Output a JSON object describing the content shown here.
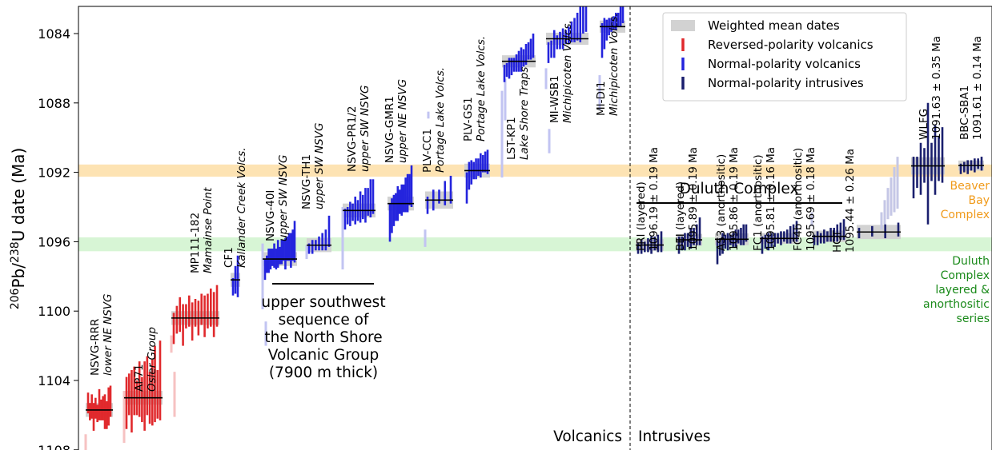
{
  "chart_data": {
    "type": "scatter",
    "title": "",
    "ylabel_main": "206",
    "ylabel_mid": "Pb/",
    "ylabel_sup": "238",
    "ylabel_tail": "U date (Ma)",
    "y_axis_reversed": true,
    "ylim": [
      1082.5,
      1108
    ],
    "yticks": [
      1084,
      1088,
      1092,
      1096,
      1100,
      1104,
      1108
    ],
    "ytick_labels": [
      "1084",
      "1088",
      "1092",
      "1096",
      "1100",
      "1104",
      "1108"
    ],
    "bands": [
      {
        "name": "beaver-bay",
        "y_min": 1091.55,
        "y_max": 1092.25,
        "color": "#fde3b3"
      },
      {
        "name": "duluth-layered",
        "y_min": 1095.75,
        "y_max": 1096.55,
        "color": "#d7f5d5"
      }
    ],
    "colors": {
      "reversed": "#e0292c",
      "reversed_light": "#f6c2c2",
      "normal": "#2424dd",
      "normal_light": "#c2c4f2",
      "intrusive": "#1a1f6e",
      "intrusive_light": "#c5c7e6",
      "weighted_box": "#d2d2d2",
      "mean_line": "#000000"
    },
    "legend": {
      "placement": "top-right",
      "items": [
        {
          "label": "Weighted mean dates",
          "kind": "box"
        },
        {
          "label": "Reversed-polarity volcanics",
          "kind": "reversed"
        },
        {
          "label": "Normal-polarity volcanics",
          "kind": "normal"
        },
        {
          "label": "Normal-polarity intrusives",
          "kind": "intrusive"
        }
      ]
    },
    "region_labels": {
      "left": "Volcanics",
      "right": "Intrusives",
      "divider_x": 787
    },
    "series": [
      {
        "name": "NSVG-RRR",
        "sub": "lower NE NSVG",
        "polarity": "reversed",
        "mean": 1105.7,
        "err": 0.25,
        "ages": [
          1105.3,
          1105.8,
          1105.5,
          1106.1,
          1105.6,
          1105.9,
          1105.4,
          1105.7,
          1105.6,
          1105.8,
          1106.0,
          1105.5,
          1105.2
        ],
        "errs": [
          0.6,
          0.5,
          0.7,
          0.8,
          0.6,
          0.5,
          0.9,
          0.6,
          0.7,
          1.0,
          0.8,
          1.1,
          0.9
        ],
        "excluded": [
          {
            "y": 1107.8,
            "e": 0.7
          }
        ]
      },
      {
        "name": "AP71",
        "sub": "Osler Group",
        "polarity": "reversed",
        "mean": 1105.0,
        "err": 0.25,
        "ages": [
          1105.3,
          1104.8,
          1105.2,
          1104.6,
          1105.0,
          1104.5,
          1105.1,
          1104.9,
          1104.3,
          1105.0,
          1104.7,
          1104.2,
          1104.8,
          1104.0
        ],
        "errs": [
          1.5,
          1.2,
          1.8,
          1.4,
          1.0,
          1.6,
          1.3,
          2.0,
          1.7,
          1.5,
          1.9,
          2.2,
          1.4,
          2.3
        ],
        "excluded": [
          {
            "y": 1106.1,
            "e": 1.5
          }
        ]
      },
      {
        "name": "MP111-182",
        "sub": "Mamainse Point",
        "polarity": "reversed",
        "mean": 1100.4,
        "err": 0.25,
        "ages": [
          1101.0,
          1100.5,
          1100.2,
          1100.8,
          1100.3,
          1100.0,
          1100.6,
          1100.1,
          1100.4,
          1099.9,
          1100.3,
          1100.0,
          1099.8,
          1100.2,
          1099.7
        ],
        "errs": [
          0.9,
          0.8,
          1.0,
          1.2,
          0.7,
          0.9,
          1.1,
          0.8,
          1.0,
          0.9,
          1.2,
          1.0,
          1.1,
          1.3,
          1.2
        ],
        "excluded": [
          {
            "y": 1101.9,
            "e": 0.5
          },
          {
            "y": 1104.8,
            "e": 1.3
          }
        ]
      },
      {
        "name": "CF1",
        "sub": "Kallander Creek Volcs.",
        "polarity": "normal",
        "mean": 1098.2,
        "err": 0.25,
        "ages": [
          1098.6,
          1098.2,
          1098.0
        ],
        "errs": [
          0.5,
          0.8,
          1.2
        ],
        "excluded": []
      },
      {
        "name": "NSVG-40I",
        "sub": "upper SW NSVG",
        "polarity": "normal",
        "mean": 1097.0,
        "err": 0.25,
        "ages": [
          1097.6,
          1097.3,
          1097.1,
          1097.0,
          1096.9,
          1096.8,
          1097.0,
          1096.7,
          1096.8,
          1096.6,
          1096.5,
          1096.7,
          1096.4,
          1096.3,
          1096.5,
          1096.2,
          1096.0
        ],
        "errs": [
          0.6,
          0.5,
          0.7,
          0.6,
          0.5,
          0.7,
          0.6,
          0.8,
          0.5,
          0.7,
          0.6,
          0.9,
          0.7,
          0.8,
          1.0,
          0.9,
          1.2
        ],
        "excluded": [
          {
            "y": 1098.0,
            "e": 1.9
          },
          {
            "y": 1101.3,
            "e": 0.7
          }
        ]
      },
      {
        "name": "NSVG-TH1",
        "sub": "upper SW NSVG",
        "polarity": "normal",
        "mean": 1096.2,
        "err": 0.25,
        "ages": [
          1096.4,
          1096.3,
          1096.2,
          1096.1,
          1096.0,
          1095.9,
          1095.4
        ],
        "errs": [
          0.3,
          0.4,
          0.3,
          0.4,
          0.5,
          0.6,
          0.9
        ],
        "excluded": [
          {
            "y": 1096.6,
            "e": 0.4
          }
        ]
      },
      {
        "name": "NSVG-PR1/2",
        "sub": "upper SW NSVG",
        "polarity": "normal",
        "mean": 1094.2,
        "err": 0.25,
        "ages": [
          1094.7,
          1094.5,
          1094.4,
          1094.3,
          1094.2,
          1094.2,
          1094.0,
          1094.0,
          1093.9,
          1093.7,
          1093.5,
          1093.4
        ],
        "errs": [
          0.6,
          0.5,
          0.7,
          0.5,
          0.8,
          0.6,
          0.9,
          0.7,
          1.0,
          0.8,
          1.1,
          1.0
        ],
        "excluded": [
          {
            "y": 1095.8,
            "e": 1.8
          }
        ]
      },
      {
        "name": "NSVG-GMR1",
        "sub": "upper NE NSVG",
        "polarity": "normal",
        "mean": 1093.8,
        "err": 0.25,
        "ages": [
          1094.9,
          1094.5,
          1094.2,
          1094.0,
          1093.8,
          1093.7,
          1093.6,
          1093.5,
          1093.3,
          1093.2,
          1093.0,
          1092.8
        ],
        "errs": [
          1.1,
          1.0,
          0.9,
          0.8,
          1.0,
          0.7,
          0.9,
          0.8,
          1.0,
          1.1,
          0.9,
          1.2
        ],
        "excluded": []
      },
      {
        "name": "PLV-CC1",
        "sub": "Portage Lake Volcs.",
        "polarity": "normal",
        "mean": 1093.6,
        "err": 0.35,
        "ages": [
          1093.9,
          1093.6,
          1093.4,
          1093.2,
          1093.0
        ],
        "errs": [
          0.5,
          0.6,
          0.4,
          0.7,
          0.8
        ],
        "excluded": [
          {
            "y": 1095.8,
            "e": 0.5
          },
          {
            "y": 1088.7,
            "e": 0.2
          }
        ]
      },
      {
        "name": "PLV-GS1",
        "sub": "Portage Lake Volcs.",
        "polarity": "normal",
        "mean": 1091.9,
        "err": 0.25,
        "ages": [
          1092.9,
          1092.2,
          1092.0,
          1091.9,
          1091.8,
          1091.7,
          1091.6,
          1091.5,
          1091.4,
          1091.4
        ],
        "errs": [
          0.9,
          0.8,
          0.7,
          0.5,
          0.6,
          0.5,
          0.7,
          0.5,
          0.6,
          0.7
        ],
        "excluded": []
      },
      {
        "name": "LST-KP1",
        "sub": "Lake Shore Traps",
        "polarity": "normal",
        "mean": 1085.6,
        "err": 0.2,
        "ages": [
          1086.3,
          1086.1,
          1086.0,
          1085.9,
          1085.8,
          1085.7,
          1085.6,
          1085.5,
          1085.4,
          1085.2,
          1085.0,
          1084.9,
          1084.7
        ],
        "errs": [
          0.5,
          0.4,
          0.6,
          0.5,
          0.4,
          0.5,
          0.6,
          0.7,
          0.5,
          0.6,
          0.5,
          0.6,
          0.7
        ],
        "excluded": [
          {
            "y": 1089.8,
            "e": 2.5
          },
          {
            "y": 1087.8,
            "e": 1.2
          }
        ]
      },
      {
        "name": "MI-WSB1",
        "sub": "Michipicoten Volcs.",
        "polarity": "normal",
        "mean": 1084.3,
        "err": 0.2,
        "ages": [
          1085.1,
          1084.9,
          1084.6,
          1084.5,
          1084.4,
          1084.3,
          1084.2,
          1084.1,
          1083.9,
          1083.8,
          1083.6,
          1083.3,
          1083.0,
          1082.8
        ],
        "errs": [
          0.6,
          0.5,
          0.8,
          0.4,
          0.5,
          0.6,
          0.4,
          0.5,
          0.6,
          0.7,
          0.8,
          1.2,
          1.0,
          1.1
        ],
        "excluded": [
          {
            "y": 1086.6,
            "e": 0.6
          },
          {
            "y": 1090.2,
            "e": 0.7
          }
        ]
      },
      {
        "name": "MI-DI1",
        "sub": "Michipicoten Volcs.",
        "polarity": "normal",
        "mean": 1083.6,
        "err": 0.2,
        "ages": [
          1084.4,
          1084.0,
          1083.8,
          1083.6,
          1083.5,
          1083.4,
          1083.3,
          1083.2,
          1083.0,
          1082.9
        ],
        "errs": [
          1.0,
          0.9,
          0.6,
          0.5,
          0.4,
          0.4,
          0.5,
          0.4,
          0.6,
          0.5
        ],
        "excluded": [
          {
            "y": 1087.4,
            "e": 1.0
          }
        ]
      },
      {
        "name": "PRI (layered)",
        "sub": "1096.19 ± 0.19 Ma",
        "polarity": "intrusive",
        "mean": 1096.19,
        "err": 0.19,
        "ages": [
          1096.4,
          1096.3,
          1096.3,
          1096.2,
          1096.2,
          1096.1,
          1096.1,
          1096.0
        ],
        "errs": [
          0.3,
          0.4,
          0.3,
          0.4,
          0.5,
          0.4,
          0.5,
          0.6
        ],
        "excluded": []
      },
      {
        "name": "BEI (layered)",
        "sub": "1095.89 ± 0.19 Ma",
        "polarity": "intrusive",
        "mean": 1095.89,
        "err": 0.19,
        "ages": [
          1096.2,
          1096.1,
          1096.0,
          1095.9,
          1095.8,
          1095.7,
          1095.6,
          1095.4
        ],
        "errs": [
          0.5,
          0.4,
          0.5,
          0.4,
          0.6,
          0.5,
          0.6,
          0.8
        ],
        "excluded": []
      },
      {
        "name": "AS3 (anorthositic)",
        "sub": "1095.86 ± 0.19 Ma",
        "polarity": "intrusive",
        "mean": 1095.86,
        "err": 0.19,
        "ages": [
          1096.6,
          1096.3,
          1096.1,
          1096.0,
          1096.0,
          1095.9,
          1095.9,
          1095.8,
          1095.7,
          1095.7,
          1095.6,
          1095.5
        ],
        "errs": [
          0.7,
          0.5,
          0.6,
          0.4,
          0.5,
          0.3,
          0.4,
          0.5,
          0.4,
          0.5,
          0.6,
          0.5
        ],
        "excluded": []
      },
      {
        "name": "FC1 (anorthositic)",
        "sub": "1095.81 ± 0.16 Ma",
        "polarity": "intrusive",
        "mean": 1095.81,
        "err": 0.16,
        "ages": [
          1096.2,
          1096.0,
          1096.0,
          1095.9,
          1095.9,
          1095.8,
          1095.8,
          1095.7,
          1095.7,
          1095.6,
          1095.5,
          1095.4
        ],
        "errs": [
          0.5,
          0.4,
          0.5,
          0.4,
          0.4,
          0.3,
          0.4,
          0.3,
          0.4,
          0.5,
          0.5,
          0.6
        ],
        "excluded": []
      },
      {
        "name": "FC4b (anorthositic)",
        "sub": "1095.69 ± 0.18 Ma",
        "polarity": "intrusive",
        "mean": 1095.69,
        "err": 0.18,
        "ages": [
          1095.9,
          1095.8,
          1095.8,
          1095.7,
          1095.7,
          1095.6,
          1095.6,
          1095.5,
          1095.4,
          1095.3
        ],
        "errs": [
          0.3,
          0.4,
          0.3,
          0.4,
          0.3,
          0.4,
          0.4,
          0.5,
          0.5,
          0.6
        ],
        "excluded": [
          {
            "y": 1094.7,
            "e": 0.4
          }
        ]
      },
      {
        "name": "HCT",
        "sub": "1095.44 ± 0.26 Ma",
        "polarity": "intrusive",
        "mean": 1095.44,
        "err": 0.26,
        "ages": [
          1095.5,
          1095.4,
          1095.4,
          1095.3
        ],
        "errs": [
          0.3,
          0.3,
          0.4,
          0.4
        ],
        "excluded": [
          {
            "y": 1094.8,
            "e": 0.5
          },
          {
            "y": 1094.3,
            "e": 0.7
          },
          {
            "y": 1093.8,
            "e": 0.9
          },
          {
            "y": 1093.4,
            "e": 1.1
          },
          {
            "y": 1093.0,
            "e": 1.3
          },
          {
            "y": 1092.6,
            "e": 1.5
          }
        ]
      },
      {
        "name": "WLFG",
        "sub": "1091.63 ± 0.35 Ma",
        "polarity": "intrusive",
        "mean": 1091.63,
        "err": 0.35,
        "ages": [
          1092.3,
          1092.0,
          1091.8,
          1091.6,
          1091.5,
          1091.4,
          1091.3,
          1091.2,
          1091.0
        ],
        "errs": [
          1.2,
          0.9,
          1.5,
          1.0,
          3.5,
          1.1,
          2.0,
          1.3,
          1.6
        ],
        "excluded": []
      },
      {
        "name": "BBC-SBA1",
        "sub": "1091.61 ± 0.14 Ma",
        "polarity": "intrusive",
        "mean": 1091.61,
        "err": 0.14,
        "ages": [
          1091.8,
          1091.7,
          1091.7,
          1091.6,
          1091.6,
          1091.5,
          1091.5
        ],
        "errs": [
          0.3,
          0.3,
          0.4,
          0.3,
          0.4,
          0.3,
          0.4
        ],
        "excluded": []
      }
    ],
    "annotations": {
      "duluth_complex": "Duluth Complex",
      "upper_sw_text": [
        "upper southwest",
        "sequence of",
        "the North Shore",
        "Volcanic Group",
        "(7900 m thick)"
      ],
      "beaver_bay": [
        "Beaver",
        "Bay",
        "Complex"
      ],
      "duluth_series": [
        "Duluth",
        "Complex",
        "layered &",
        "anorthositic",
        "series"
      ]
    }
  }
}
